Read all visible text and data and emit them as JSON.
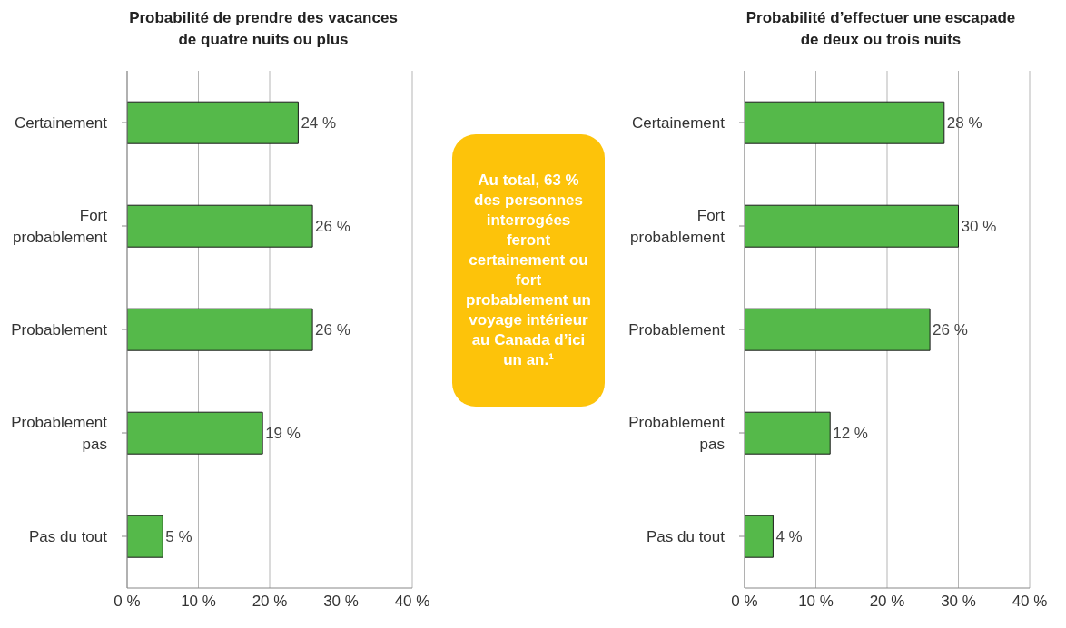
{
  "chart_data": [
    {
      "type": "bar",
      "orientation": "horizontal",
      "title": "Probabilité de prendre des vacances de quatre nuits ou plus",
      "categories": [
        "Certainement",
        "Fort probablement",
        "Probablement",
        "Probablement pas",
        "Pas du tout"
      ],
      "values": [
        24,
        26,
        26,
        19,
        5
      ],
      "color": "#55b94a",
      "value_labels": [
        "24 %",
        "26 %",
        "26 %",
        "19 %",
        "5 %"
      ],
      "xlim": [
        0,
        40
      ],
      "xticks": [
        {
          "value": 0,
          "label": "0 %"
        },
        {
          "value": 10,
          "label": "10 %"
        },
        {
          "value": 20,
          "label": "20 %"
        },
        {
          "value": 30,
          "label": "30 %"
        },
        {
          "value": 40,
          "label": "40 %"
        }
      ],
      "grid": "x",
      "legend": false
    },
    {
      "type": "other",
      "annotations": [
        "Au total, 63 % des personnes interrogées feront certainement ou fort probablement un voyage intérieur au Canada d’ici un an.¹"
      ]
    },
    {
      "type": "bar",
      "orientation": "horizontal",
      "title": "Probabilité d’effectuer une escapade de deux ou trois nuits",
      "categories": [
        "Certainement",
        "Fort probablement",
        "Probablement",
        "Probablement pas",
        "Pas du tout"
      ],
      "values": [
        28,
        30,
        26,
        12,
        4
      ],
      "color": "#55b94a",
      "value_labels": [
        "28 %",
        "30 %",
        "26 %",
        "12 %",
        "4 %"
      ],
      "xlim": [
        0,
        40
      ],
      "xticks": [
        {
          "value": 0,
          "label": "0 %"
        },
        {
          "value": 10,
          "label": "10 %"
        },
        {
          "value": 20,
          "label": "20 %"
        },
        {
          "value": 30,
          "label": "30 %"
        },
        {
          "value": 40,
          "label": "40 %"
        }
      ],
      "grid": "x",
      "legend": false
    }
  ]
}
